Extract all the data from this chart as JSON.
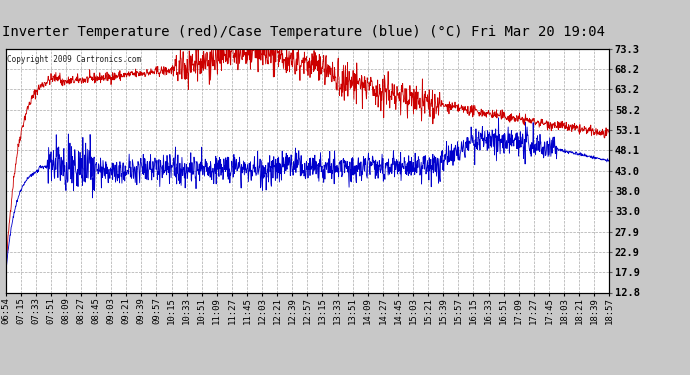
{
  "title": "Inverter Temperature (red)/Case Temperature (blue) (°C) Fri Mar 20 19:04",
  "copyright": "Copyright 2009 Cartronics.com",
  "ylabel_right_ticks": [
    73.3,
    68.2,
    63.2,
    58.2,
    53.1,
    48.1,
    43.0,
    38.0,
    33.0,
    27.9,
    22.9,
    17.9,
    12.8
  ],
  "ymin": 12.8,
  "ymax": 73.3,
  "background_color": "#c8c8c8",
  "plot_bg_color": "#ffffff",
  "grid_color": "#aaaaaa",
  "title_fontsize": 10,
  "x_label_fontsize": 6.5,
  "y_label_fontsize": 7.5,
  "line_color_red": "#cc0000",
  "line_color_blue": "#0000cc",
  "x_labels": [
    "06:54",
    "07:15",
    "07:33",
    "07:51",
    "08:09",
    "08:27",
    "08:45",
    "09:03",
    "09:21",
    "09:39",
    "09:57",
    "10:15",
    "10:33",
    "10:51",
    "11:09",
    "11:27",
    "11:45",
    "12:03",
    "12:21",
    "12:39",
    "12:57",
    "13:15",
    "13:33",
    "13:51",
    "14:09",
    "14:27",
    "14:45",
    "15:03",
    "15:21",
    "15:39",
    "15:57",
    "16:15",
    "16:33",
    "16:51",
    "17:09",
    "17:27",
    "17:45",
    "18:03",
    "18:21",
    "18:39",
    "18:57"
  ]
}
